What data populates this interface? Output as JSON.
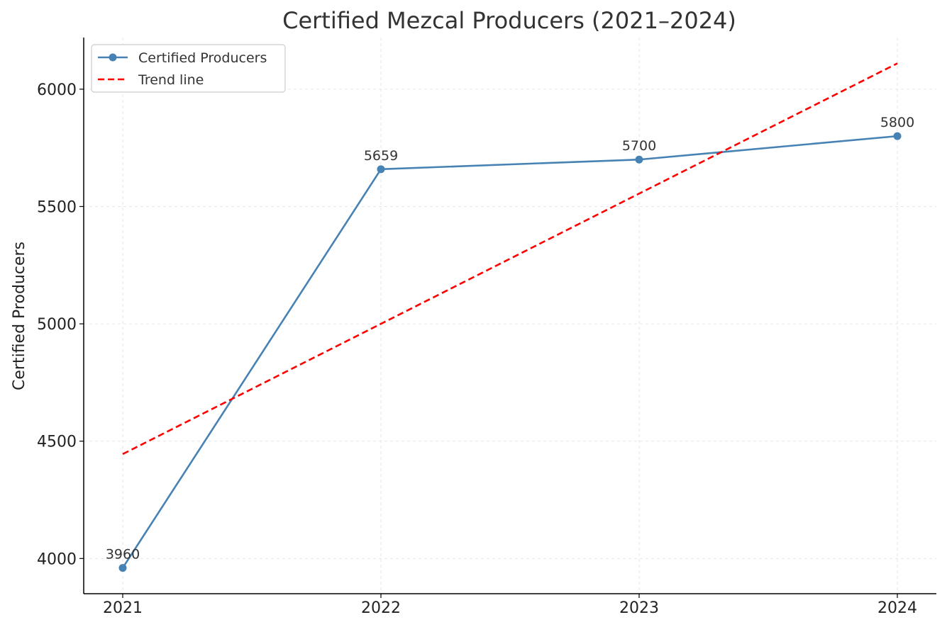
{
  "chart_data": {
    "type": "line",
    "title": "Certified Mezcal Producers (2021–2024)",
    "xlabel": "",
    "ylabel": "Certified Producers",
    "categories": [
      "2021",
      "2022",
      "2023",
      "2024"
    ],
    "ylim": [
      3850,
      6220
    ],
    "yticks": [
      4000,
      4500,
      5000,
      5500,
      6000
    ],
    "grid": true,
    "legend_position": "top-left",
    "series": [
      {
        "name": "Certified Producers",
        "values": [
          3960,
          5659,
          5700,
          5800
        ],
        "color": "#4682b4",
        "style": "solid",
        "markers": true,
        "data_labels": [
          "3960",
          "5659",
          "5700",
          "5800"
        ]
      },
      {
        "name": "Trend line",
        "values": [
          4445,
          5000,
          5555,
          6110
        ],
        "color": "#ff0000",
        "style": "dashed",
        "markers": false
      }
    ]
  }
}
